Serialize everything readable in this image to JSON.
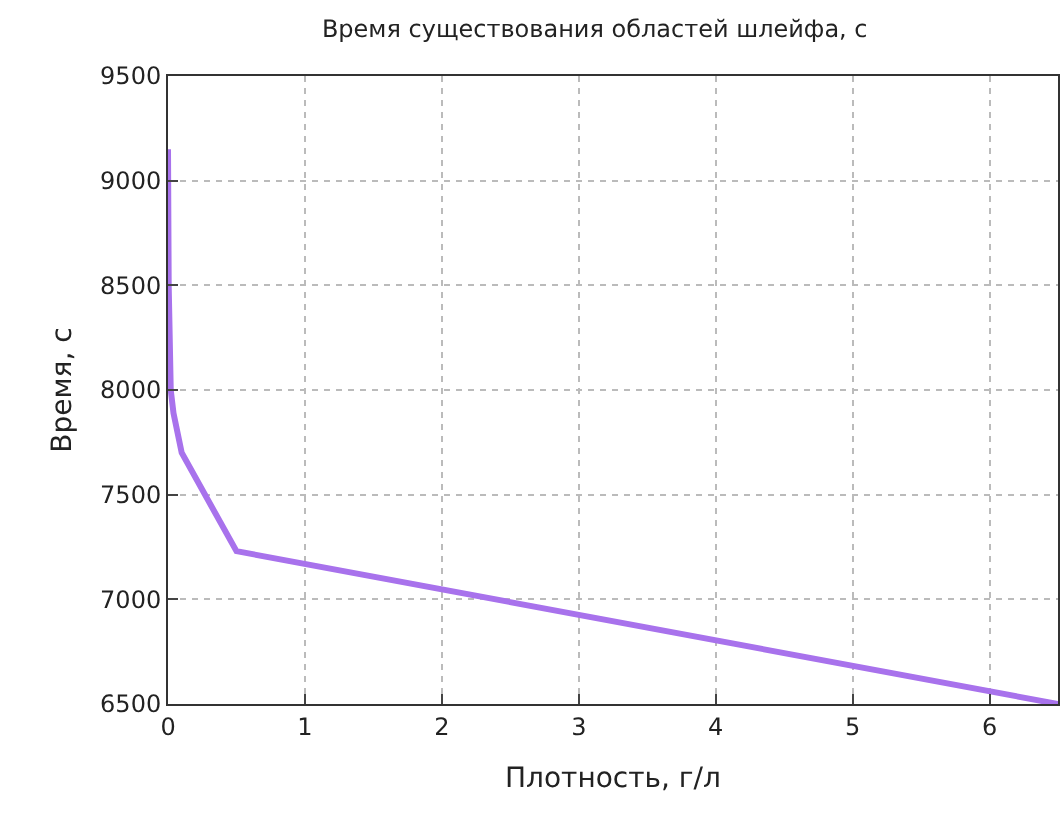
{
  "chart_data": {
    "type": "line",
    "title": "Время существования областей шлейфа, с",
    "xlabel": "Плотность, г/л",
    "ylabel": "Время, с",
    "x": [
      0,
      0.005,
      0.02,
      0.04,
      0.1,
      0.5,
      6.5
    ],
    "series": [
      {
        "color": "#a872ec",
        "values": [
          9150,
          8500,
          8000,
          7890,
          7700,
          7230,
          6500
        ]
      }
    ],
    "xlim": [
      0,
      6.5
    ],
    "xticks": [
      0,
      1,
      2,
      3,
      4,
      5,
      6
    ],
    "ylim": [
      6500,
      9500
    ],
    "yticks": [
      6500,
      7000,
      7500,
      8000,
      8500,
      9000,
      9500
    ],
    "grid": true,
    "marker": "none",
    "line_style": "solid"
  }
}
